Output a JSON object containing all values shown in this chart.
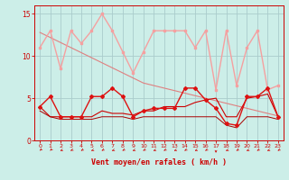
{
  "x": [
    0,
    1,
    2,
    3,
    4,
    5,
    6,
    7,
    8,
    9,
    10,
    11,
    12,
    13,
    14,
    15,
    16,
    17,
    18,
    19,
    20,
    21,
    22,
    23
  ],
  "rafales": [
    11,
    13,
    8.5,
    13,
    11.5,
    13,
    15,
    13,
    10.5,
    8,
    10.5,
    13,
    13,
    13,
    13,
    11,
    13,
    6,
    13,
    6.5,
    11,
    13,
    6,
    6.5
  ],
  "vent_moy": [
    4,
    5.2,
    2.8,
    2.8,
    2.8,
    5.2,
    5.2,
    6.2,
    5.2,
    2.8,
    3.5,
    3.8,
    3.8,
    3.8,
    6.2,
    6.2,
    4.8,
    3.8,
    2,
    1.8,
    5.2,
    5.2,
    6.2,
    2.8
  ],
  "line_mid": [
    4,
    2.8,
    2.8,
    2.8,
    2.8,
    2.8,
    3.5,
    3.2,
    3.2,
    3.0,
    3.5,
    3.5,
    4.0,
    4.0,
    4.0,
    4.5,
    4.8,
    5.0,
    2.8,
    2.8,
    5.0,
    5.2,
    5.5,
    2.8
  ],
  "line_low": [
    3.5,
    2.8,
    2.5,
    2.5,
    2.5,
    2.5,
    2.8,
    2.8,
    2.8,
    2.5,
    2.8,
    2.8,
    2.8,
    2.8,
    2.8,
    2.8,
    2.8,
    2.8,
    1.8,
    1.5,
    2.8,
    2.8,
    2.8,
    2.5
  ],
  "trend": [
    12.8,
    12.2,
    11.6,
    11.0,
    10.4,
    9.8,
    9.2,
    8.6,
    8.0,
    7.4,
    6.8,
    6.5,
    6.2,
    5.9,
    5.6,
    5.3,
    5.0,
    4.7,
    4.4,
    4.1,
    3.8,
    3.5,
    3.2,
    2.9
  ],
  "color_rafales": "#f5a0a0",
  "color_vent_moy": "#dd1111",
  "color_mid": "#cc0000",
  "color_low": "#aa0000",
  "color_trend": "#e08080",
  "bg_color": "#cceee8",
  "grid_color": "#aacccc",
  "axis_color": "#cc0000",
  "xlabel": "Vent moyen/en rafales ( km/h )",
  "ylim": [
    0,
    16
  ],
  "xlim": [
    -0.5,
    23.5
  ],
  "yticks": [
    0,
    5,
    10,
    15
  ],
  "xticks": [
    0,
    1,
    2,
    3,
    4,
    5,
    6,
    7,
    8,
    9,
    10,
    11,
    12,
    13,
    14,
    15,
    16,
    17,
    18,
    19,
    20,
    21,
    22,
    23
  ],
  "arrow_angles": [
    225,
    225,
    200,
    210,
    215,
    200,
    215,
    200,
    215,
    200,
    215,
    200,
    215,
    200,
    215,
    200,
    215,
    270,
    200,
    215,
    200,
    215,
    200,
    215
  ]
}
